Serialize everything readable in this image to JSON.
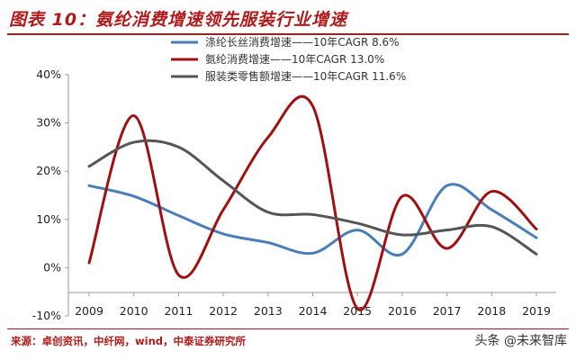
{
  "header": {
    "title": "图表 10：氨纶消费增速领先服装行业增速"
  },
  "footer": {
    "source": "来源：卓创资讯，中纤网，wind，中泰证券研究所",
    "watermark": "头条 @未来智库"
  },
  "chart_data": {
    "type": "line",
    "x": [
      "2009",
      "2010",
      "2011",
      "2012",
      "2013",
      "2014",
      "2015",
      "2016",
      "2017",
      "2018",
      "2019"
    ],
    "ylim": [
      -10,
      40
    ],
    "yticks": [
      "-10%",
      "0%",
      "10%",
      "20%",
      "30%",
      "40%"
    ],
    "ytick_values": [
      -10,
      0,
      10,
      20,
      30,
      40
    ],
    "grid": false,
    "legend": "top-center",
    "series": [
      {
        "name": "涤纶长丝消费增速——10年CAGR 8.6%",
        "color": "#4a7ebb",
        "values": [
          17,
          14.8,
          10.8,
          7,
          5.2,
          3,
          7.8,
          2.8,
          17,
          12,
          6.2
        ]
      },
      {
        "name": "氨纶消费增速——10年CAGR 13.0%",
        "color": "#a01010",
        "values": [
          1,
          31.5,
          -1.5,
          12,
          27,
          33.5,
          -8.5,
          14.8,
          4,
          15.8,
          8
        ]
      },
      {
        "name": "服装类零售额增速——10年CAGR 11.6%",
        "color": "#555555",
        "values": [
          21,
          26,
          25,
          18,
          11.5,
          11,
          9.2,
          6.8,
          7.8,
          8.5,
          2.8
        ]
      }
    ]
  }
}
